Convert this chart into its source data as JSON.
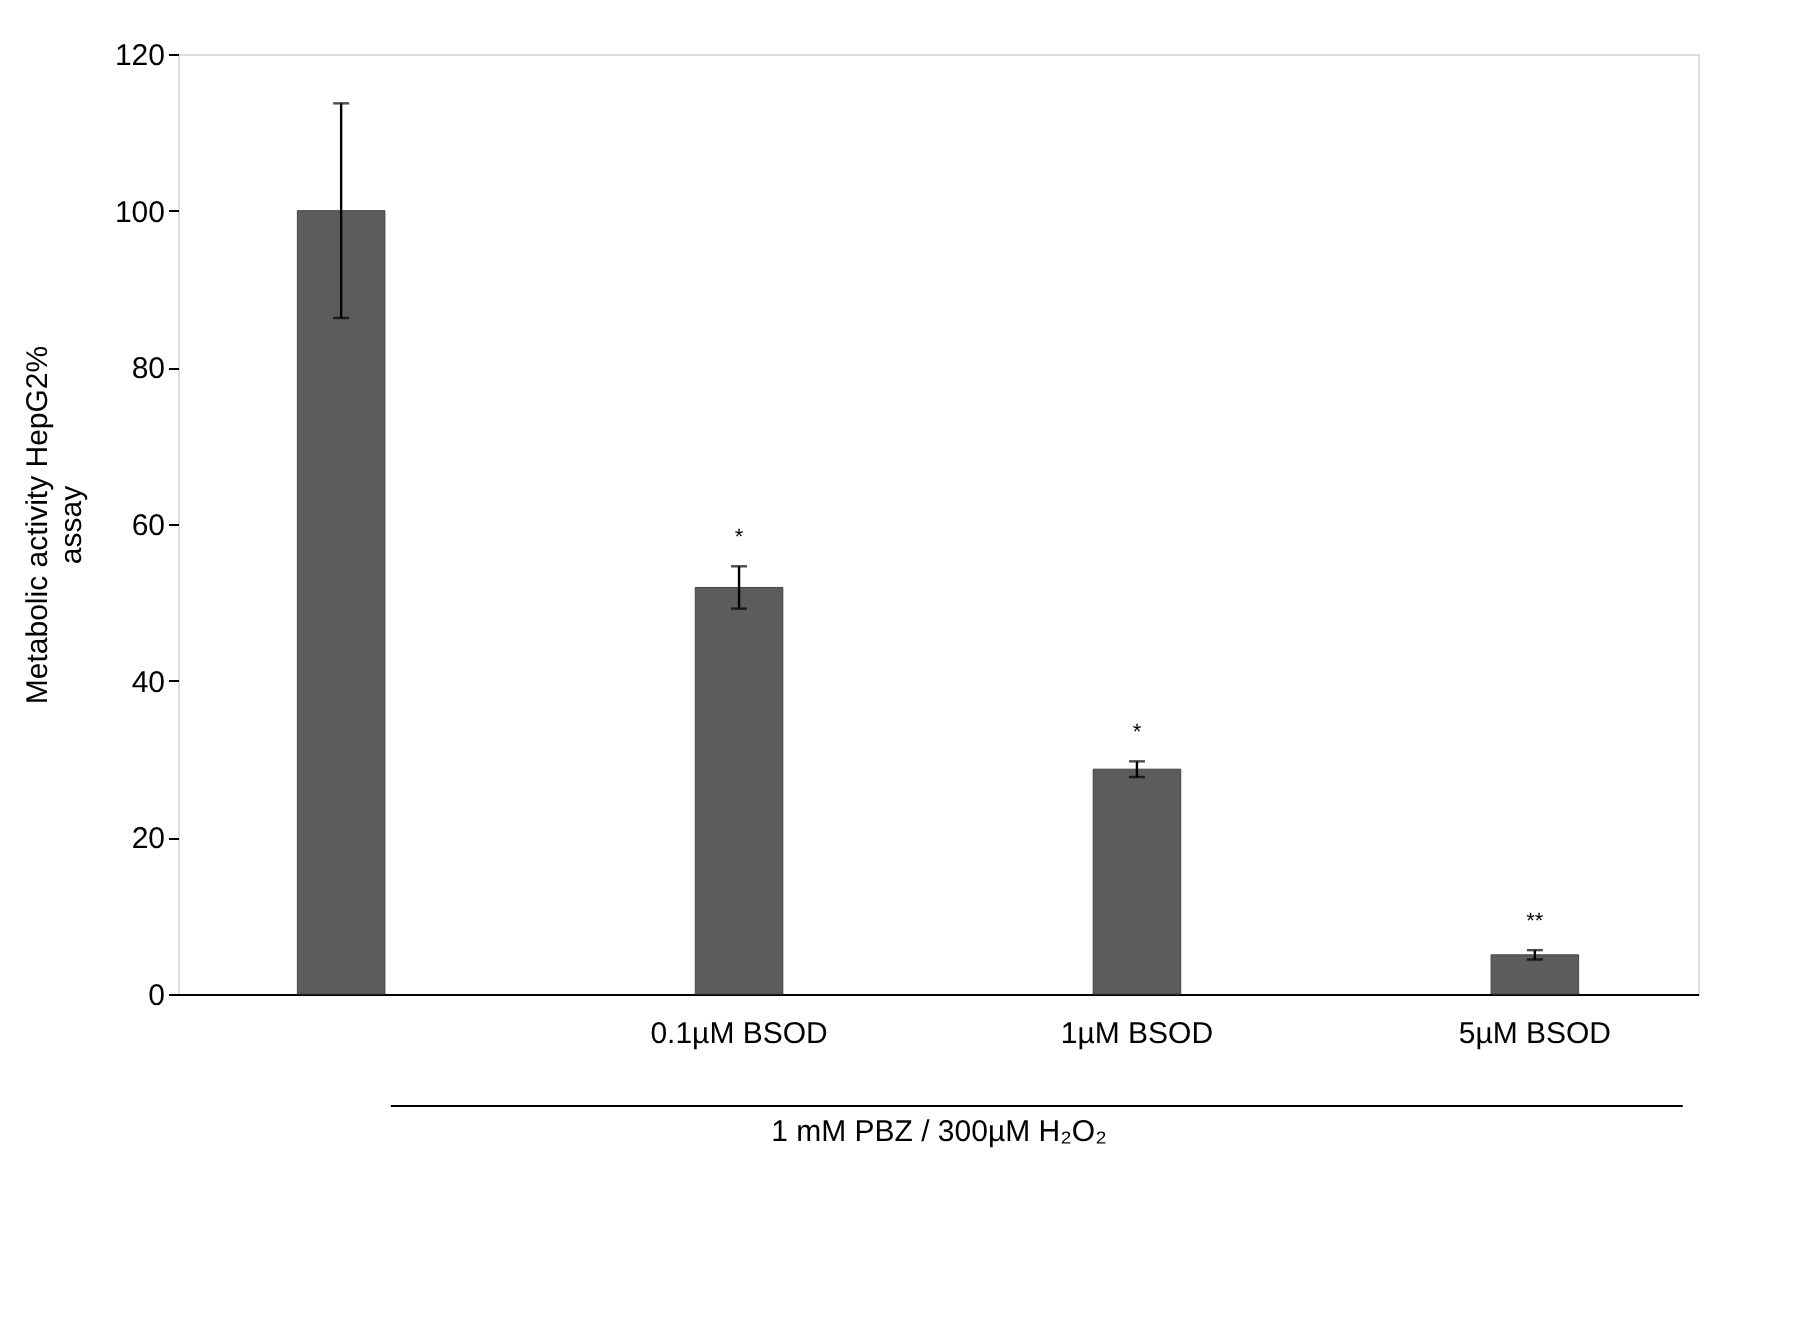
{
  "chart_data": {
    "type": "bar",
    "xlabel": "1 mM PBZ / 300µM H₂O₂",
    "ylabel": "Metabolic activity HepG2%\nassay",
    "categories": [
      null,
      "0.1µM BSOD",
      "1µM BSOD",
      "5µM BSOD"
    ],
    "values": [
      100,
      51.9,
      28.7,
      5.0
    ],
    "errors": [
      13.7,
      2.7,
      1.0,
      0.6
    ],
    "color": "#5c5c5c",
    "value_labels": [
      null,
      "*",
      "*",
      "**"
    ],
    "ylim": [
      0,
      120
    ],
    "yticks": [
      0,
      20,
      40,
      60,
      80,
      100,
      120
    ],
    "grid": false
  }
}
